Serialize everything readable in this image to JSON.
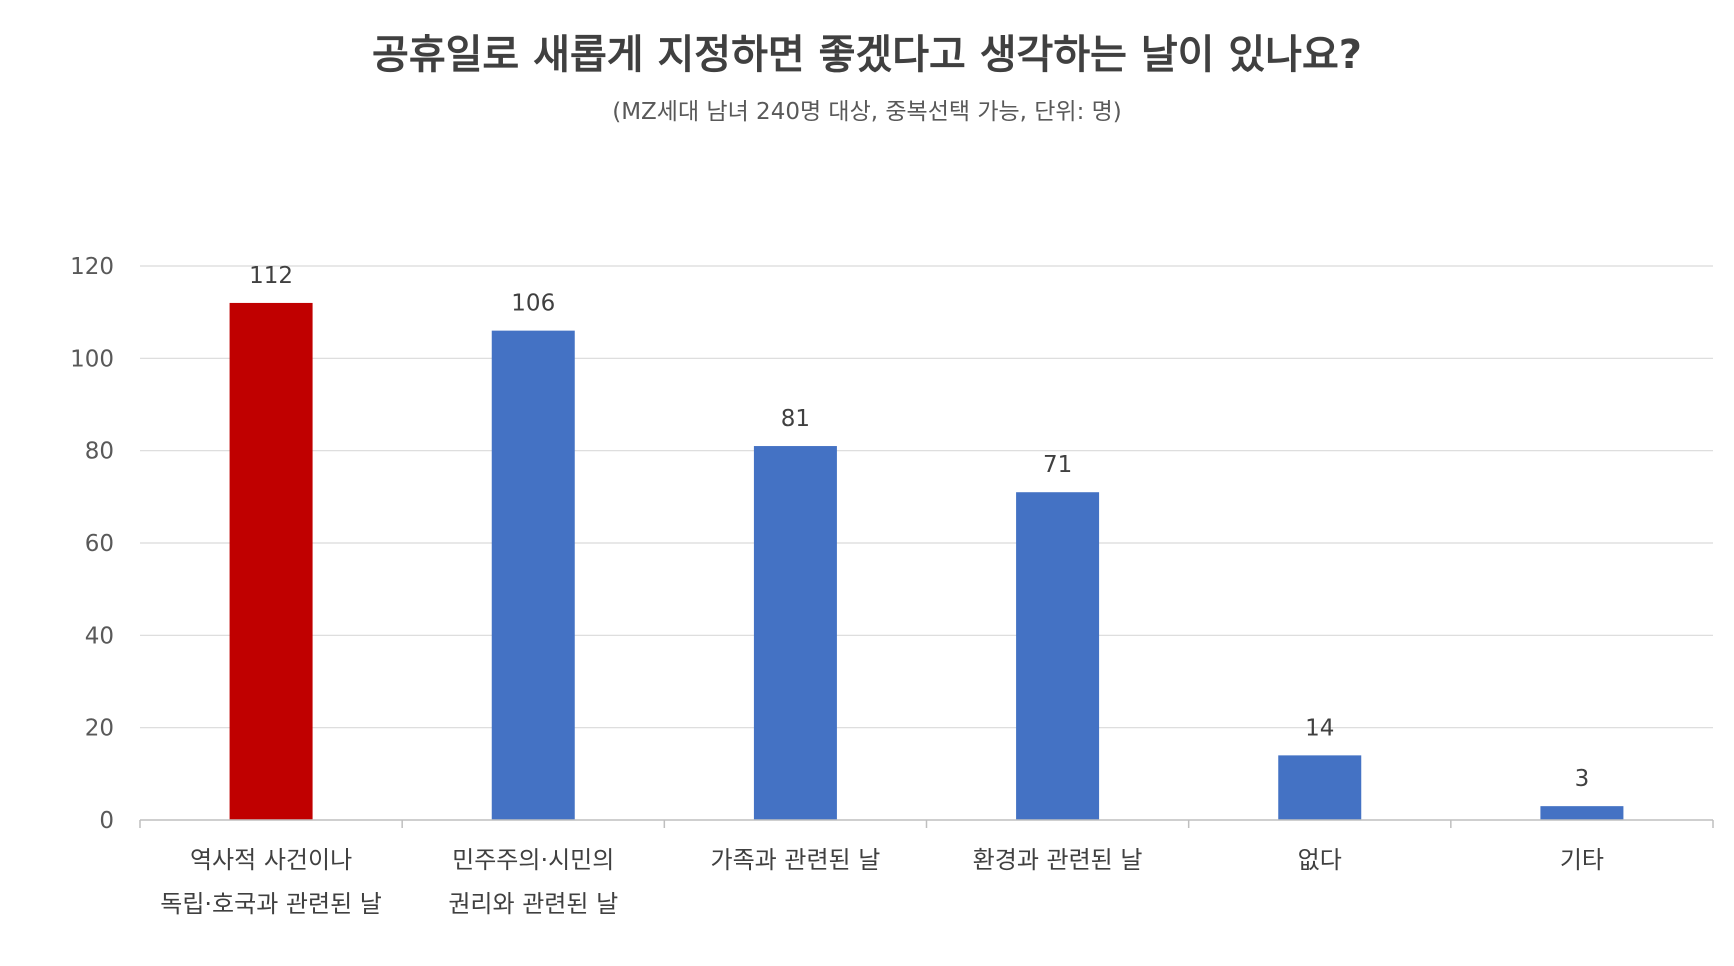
{
  "chart_data": {
    "type": "bar",
    "title": "공휴일로 새롭게 지정하면 좋겠다고 생각하는 날이 있나요?",
    "subtitle": "(MZ세대 남녀 240명 대상, 중복선택 가능, 단위: 명)",
    "categories": [
      [
        "역사적 사건이나",
        "독립·호국과 관련된 날"
      ],
      [
        "민주주의·시민의",
        "권리와 관련된 날"
      ],
      [
        "가족과 관련된 날"
      ],
      [
        "환경과 관련된 날"
      ],
      [
        "없다"
      ],
      [
        "기타"
      ]
    ],
    "values": [
      112,
      106,
      81,
      71,
      14,
      3
    ],
    "data_labels": [
      "112",
      "106",
      "81",
      "71",
      "14",
      "3"
    ],
    "bar_colors": [
      "#C00000",
      "#4472C4",
      "#4472C4",
      "#4472C4",
      "#4472C4",
      "#4472C4"
    ],
    "ylim": [
      0,
      120
    ],
    "yticks": [
      0,
      20,
      40,
      60,
      80,
      100,
      120
    ],
    "ytick_labels": [
      "0",
      "20",
      "40",
      "60",
      "80",
      "100",
      "120"
    ],
    "grid": true,
    "xlabel": "",
    "ylabel": ""
  }
}
